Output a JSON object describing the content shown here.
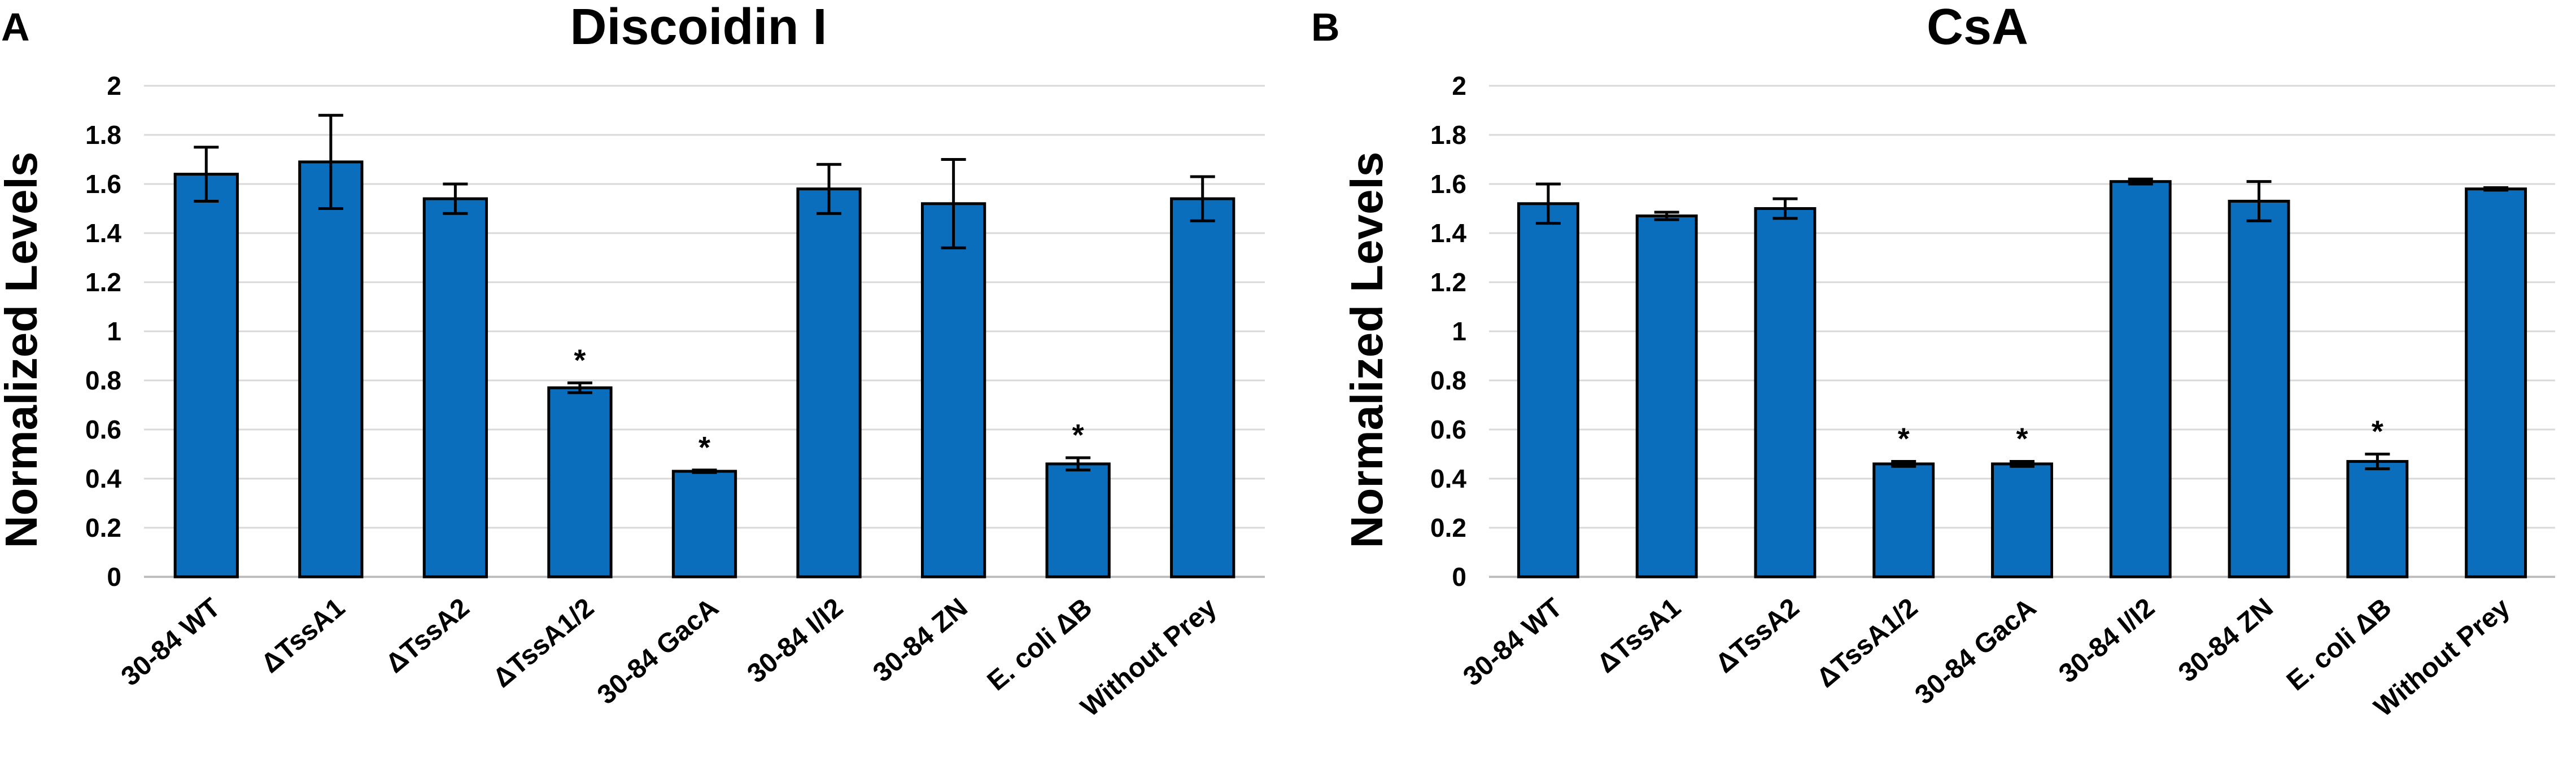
{
  "chart_data": [
    {
      "panel": "A",
      "type": "bar",
      "title": "Discoidin I",
      "ylabel": "Normalized Levels",
      "xlabel": "",
      "ylim": [
        0,
        2
      ],
      "yticks": [
        "0",
        "0.2",
        "0.4",
        "0.6",
        "0.8",
        "1",
        "1.2",
        "1.4",
        "1.6",
        "1.8",
        "2"
      ],
      "grid": true,
      "color": "#0a6ebd",
      "categories": [
        "30-84 WT",
        "ΔTssA1",
        "ΔTssA2",
        "ΔTssA1/2",
        "30-84 GacA",
        "30-84 I/I2",
        "30-84 ZN",
        "E. coli ΔB",
        "Without Prey"
      ],
      "values": [
        1.64,
        1.69,
        1.54,
        0.77,
        0.43,
        1.58,
        1.52,
        0.46,
        1.54
      ],
      "errors": [
        0.11,
        0.19,
        0.06,
        0.02,
        0.005,
        0.1,
        0.18,
        0.025,
        0.09
      ],
      "significance": [
        "",
        "",
        "",
        "*",
        "*",
        "",
        "",
        "*",
        ""
      ]
    },
    {
      "panel": "B",
      "type": "bar",
      "title": "CsA",
      "ylabel": "Normalized Levels",
      "xlabel": "",
      "ylim": [
        0,
        2
      ],
      "yticks": [
        "0",
        "0.2",
        "0.4",
        "0.6",
        "0.8",
        "1",
        "1.2",
        "1.4",
        "1.6",
        "1.8",
        "2"
      ],
      "grid": true,
      "color": "#0a6ebd",
      "categories": [
        "30-84 WT",
        "ΔTssA1",
        "ΔTssA2",
        "ΔTssA1/2",
        "30-84 GacA",
        "30-84 I/I2",
        "30-84 ZN",
        "E. coli ΔB",
        "Without Prey"
      ],
      "values": [
        1.52,
        1.47,
        1.5,
        0.46,
        0.46,
        1.61,
        1.53,
        0.47,
        1.58
      ],
      "errors": [
        0.08,
        0.015,
        0.04,
        0.01,
        0.01,
        0.01,
        0.08,
        0.03,
        0.005
      ],
      "significance": [
        "",
        "",
        "",
        "*",
        "*",
        "",
        "",
        "*",
        ""
      ]
    }
  ]
}
